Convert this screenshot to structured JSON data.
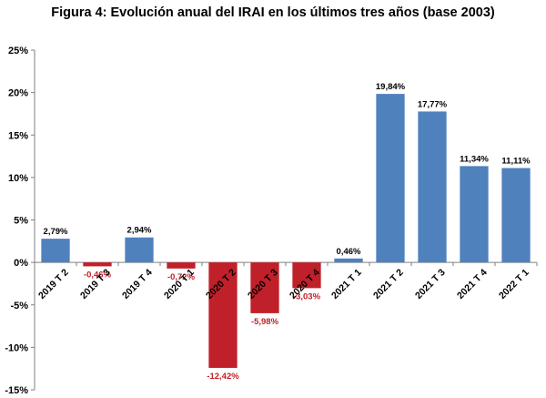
{
  "chart_data": {
    "type": "bar",
    "title": "Figura 4: Evolución anual del IRAI en los últimos tres años (base 2003)",
    "xlabel": "",
    "ylabel": "",
    "ylim": [
      -15,
      25
    ],
    "yticks": [
      "25%",
      "20%",
      "15%",
      "10%",
      "5%",
      "0%",
      "-5%",
      "-10%",
      "-15%"
    ],
    "ytick_values": [
      25,
      20,
      15,
      10,
      5,
      0,
      -5,
      -10,
      -15
    ],
    "grid": false,
    "legend": "none",
    "categories": [
      "2019 T 2",
      "2019 T 3",
      "2019 T 4",
      "2020 T 1",
      "2020 T 2",
      "2020 T 3",
      "2020 T 4",
      "2021 T 1",
      "2021 T 2",
      "2021 T 3",
      "2021 T 4",
      "2022 T 1"
    ],
    "values": [
      2.79,
      -0.46,
      2.94,
      -0.72,
      -12.42,
      -5.98,
      -3.03,
      0.46,
      19.84,
      17.77,
      11.34,
      11.11
    ],
    "data_labels": [
      "2,79%",
      "-0,46%",
      "2,94%",
      "-0,72%",
      "-12,42%",
      "-5,98%",
      "-3,03%",
      "0,46%",
      "19,84%",
      "17,77%",
      "11,34%",
      "11,11%"
    ],
    "colors": {
      "positive": "#4f81bd",
      "negative": "#c0202a",
      "negative_label": "#c0202a",
      "positive_label": "#000000",
      "axis": "#808080"
    }
  }
}
